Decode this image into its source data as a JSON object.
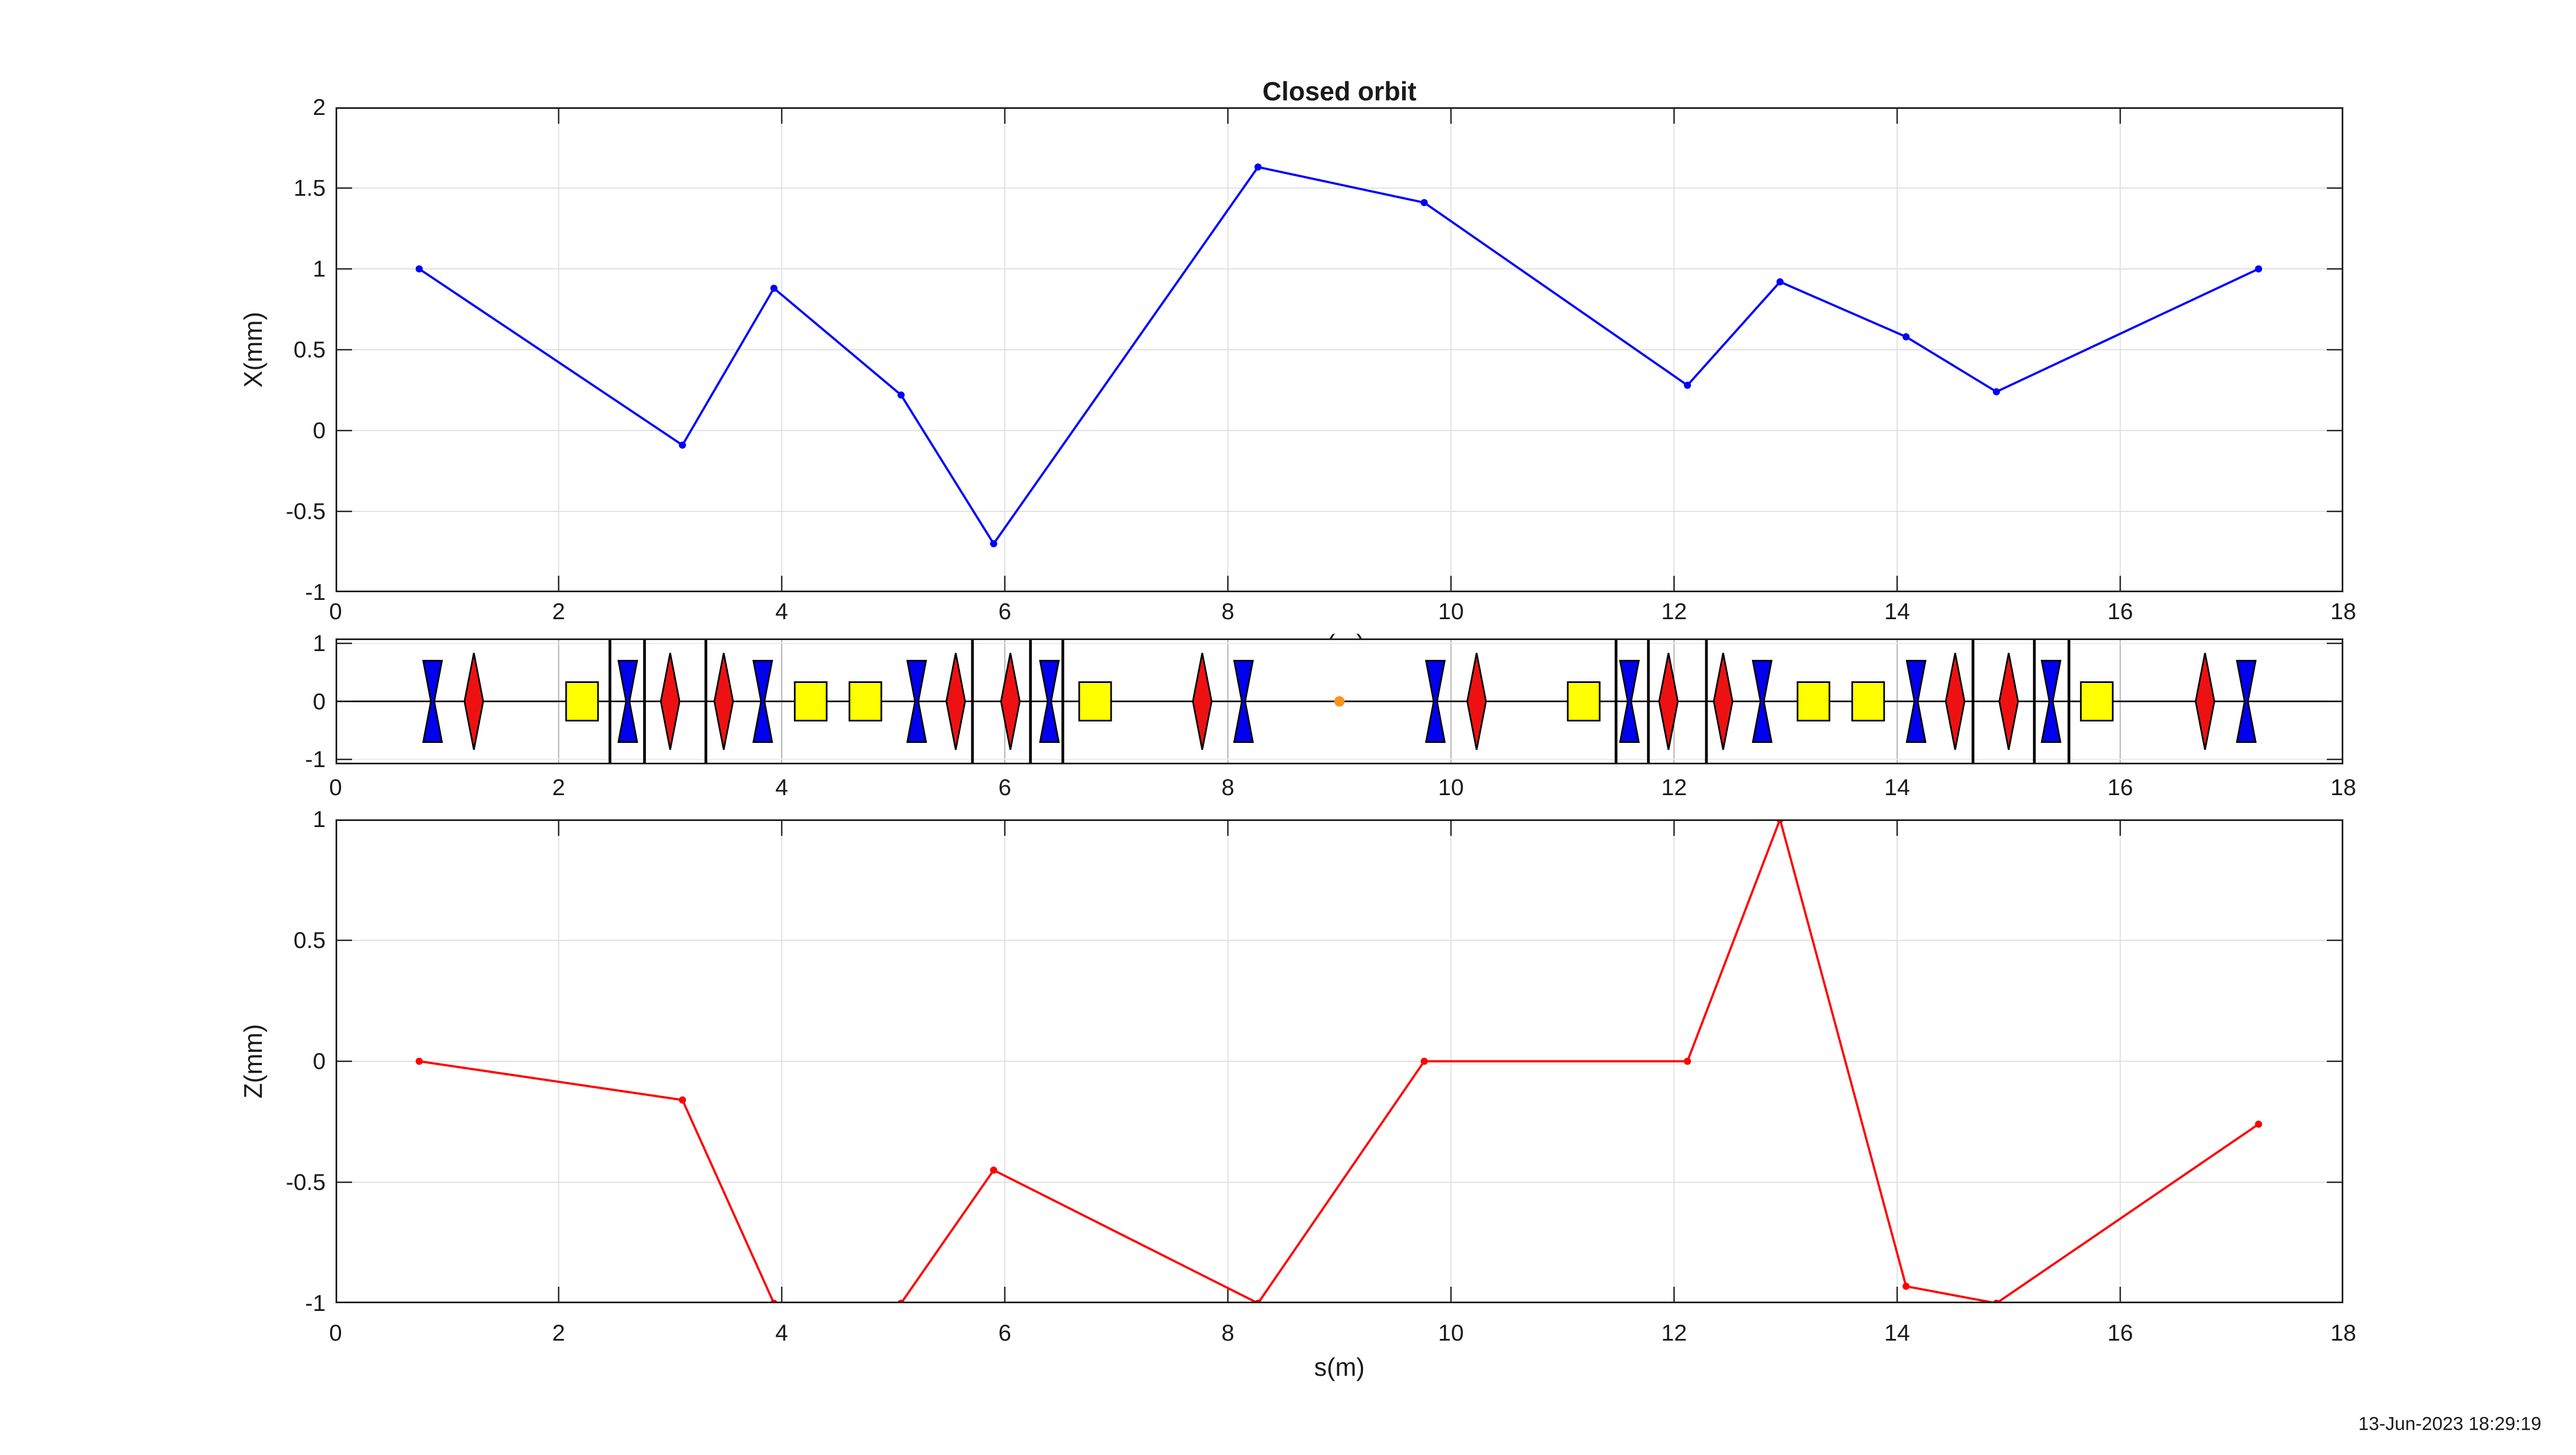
{
  "figure": {
    "timestamp": "13-Jun-2023 18:29:19",
    "background": "#ffffff",
    "frame_color": "#1f1f1f",
    "grid_color": "#e0e0e0",
    "mid_vgrid_color": "#b0b0b0",
    "text_color": "#1a1a1a"
  },
  "chart_data": [
    {
      "type": "line",
      "name": "horizontal-closed-orbit",
      "title": "Closed orbit",
      "xlabel": "s(m)",
      "ylabel": "X(mm)",
      "xlim": [
        0,
        18
      ],
      "ylim": [
        -1,
        2
      ],
      "grid": true,
      "legend_position": "none",
      "xticks": [
        0,
        2,
        4,
        6,
        8,
        10,
        12,
        14,
        16,
        18
      ],
      "xtick_labels": [
        "0",
        "2",
        "4",
        "6",
        "8",
        "10",
        "12",
        "14",
        "16",
        "18"
      ],
      "yticks": [
        2,
        1.5,
        1,
        0.5,
        0,
        -0.5,
        -1
      ],
      "ytick_labels": [
        "2",
        "1.5",
        "1",
        "0.5",
        "0",
        "-0.5",
        "-1"
      ],
      "line_color": "#0000ff",
      "marker": "dot",
      "x": [
        0.75,
        3.11,
        3.93,
        5.07,
        5.9,
        8.27,
        9.76,
        12.12,
        12.95,
        14.08,
        14.89,
        17.24
      ],
      "y": [
        1.0,
        -0.09,
        0.88,
        0.22,
        -0.7,
        1.63,
        1.41,
        0.28,
        0.92,
        0.58,
        0.24,
        1.0
      ]
    },
    {
      "type": "lattice",
      "name": "magnet-lattice-synoptic",
      "xlim": [
        0,
        18
      ],
      "ylim": [
        -1.08,
        1.08
      ],
      "xticks": [
        0,
        2,
        4,
        6,
        8,
        10,
        12,
        14,
        16,
        18
      ],
      "xtick_labels": [
        "0",
        "2",
        "4",
        "6",
        "8",
        "10",
        "12",
        "14",
        "16",
        "18"
      ],
      "yticks": [
        1,
        0,
        -1
      ],
      "ytick_labels": [
        "1",
        "0",
        "-1"
      ],
      "elements": {
        "blue_bowtie_s": [
          0.87,
          2.62,
          3.83,
          5.21,
          6.4,
          8.14,
          9.86,
          11.6,
          12.79,
          14.17,
          15.38,
          17.13
        ],
        "red_diamond_s": [
          1.24,
          3.0,
          3.48,
          5.56,
          6.05,
          7.77,
          10.23,
          11.95,
          12.44,
          14.52,
          15.0,
          16.76
        ],
        "yellow_rect_s": [
          2.21,
          4.26,
          4.75,
          6.81,
          11.19,
          13.25,
          13.74,
          15.79
        ],
        "black_line_s": [
          2.46,
          2.77,
          3.32,
          5.71,
          6.23,
          6.52,
          11.48,
          11.77,
          12.29,
          14.68,
          15.23,
          15.54
        ],
        "orange_dot_s": [
          9.0
        ],
        "colors": {
          "blue": "#0000ee",
          "red": "#ee1111",
          "yellow": "#ffff00",
          "black": "#000000",
          "orange": "#f7941d"
        }
      }
    },
    {
      "type": "line",
      "name": "vertical-closed-orbit",
      "title": "",
      "xlabel": "s(m)",
      "ylabel": "Z(mm)",
      "xlim": [
        0,
        18
      ],
      "ylim": [
        -1,
        1
      ],
      "grid": true,
      "legend_position": "none",
      "xticks": [
        0,
        2,
        4,
        6,
        8,
        10,
        12,
        14,
        16,
        18
      ],
      "xtick_labels": [
        "0",
        "2",
        "4",
        "6",
        "8",
        "10",
        "12",
        "14",
        "16",
        "18"
      ],
      "yticks": [
        1,
        0.5,
        0,
        -0.5,
        -1
      ],
      "ytick_labels": [
        "1",
        "0.5",
        "0",
        "-0.5",
        "-1"
      ],
      "line_color": "#ff0000",
      "marker": "dot",
      "x": [
        0.75,
        3.11,
        3.93,
        5.07,
        5.9,
        8.27,
        9.76,
        12.12,
        12.95,
        14.08,
        14.89,
        17.24
      ],
      "y": [
        0.0,
        -0.16,
        -1.0,
        -1.0,
        -0.45,
        -1.0,
        0.0,
        0.0,
        1.0,
        -0.93,
        -1.0,
        -0.26
      ]
    }
  ]
}
